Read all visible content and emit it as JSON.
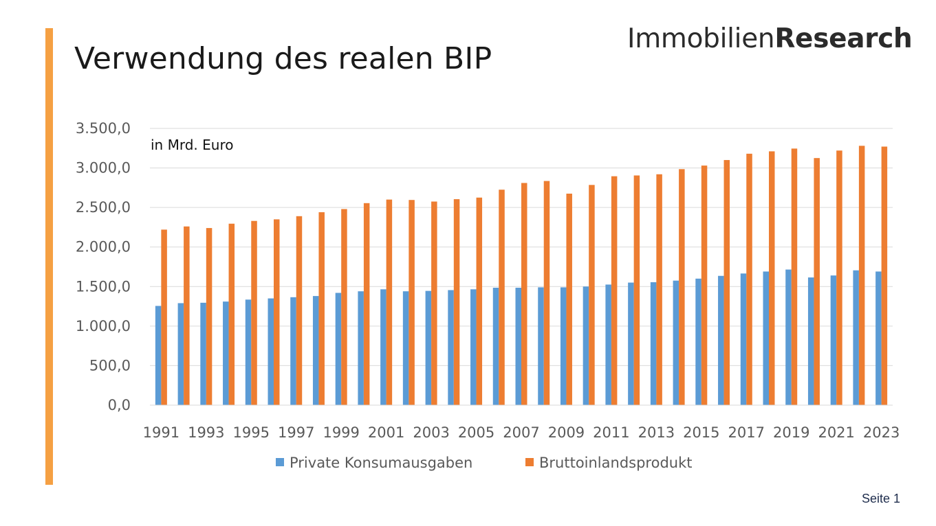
{
  "slide": {
    "title": "Verwendung des realen BIP",
    "logo_light": "Immobilien",
    "logo_bold": "Research",
    "page_number": "Seite 1",
    "accent_color": "#f5a043"
  },
  "chart_data": {
    "type": "bar",
    "annotation": "in Mrd. Euro",
    "categories": [
      "1991",
      "1992",
      "1993",
      "1994",
      "1995",
      "1996",
      "1997",
      "1998",
      "1999",
      "2000",
      "2001",
      "2002",
      "2003",
      "2004",
      "2005",
      "2006",
      "2007",
      "2008",
      "2009",
      "2010",
      "2011",
      "2012",
      "2013",
      "2014",
      "2015",
      "2016",
      "2017",
      "2018",
      "2019",
      "2020",
      "2021",
      "2022",
      "2023"
    ],
    "x_tick_labels": [
      "1991",
      "1993",
      "1995",
      "1997",
      "1999",
      "2001",
      "2003",
      "2005",
      "2007",
      "2009",
      "2011",
      "2013",
      "2015",
      "2017",
      "2019",
      "2021",
      "2023"
    ],
    "y_tick_labels": [
      "0,0",
      "500,0",
      "1.000,0",
      "1.500,0",
      "2.000,0",
      "2.500,0",
      "3.000,0",
      "3.500,0"
    ],
    "ylim": [
      0,
      3500
    ],
    "y_tick_step": 500,
    "grid": true,
    "legend_position": "bottom",
    "series": [
      {
        "name": "Private Konsumausgaben",
        "color": "#5b9bd5",
        "values": [
          1255,
          1290,
          1295,
          1310,
          1335,
          1350,
          1365,
          1380,
          1420,
          1440,
          1465,
          1440,
          1445,
          1455,
          1465,
          1485,
          1485,
          1490,
          1490,
          1500,
          1525,
          1550,
          1555,
          1575,
          1600,
          1635,
          1665,
          1690,
          1715,
          1615,
          1640,
          1705,
          1690
        ]
      },
      {
        "name": "Bruttoinlandsprodukt",
        "color": "#ed7d31",
        "values": [
          2220,
          2260,
          2240,
          2295,
          2330,
          2350,
          2390,
          2440,
          2480,
          2555,
          2600,
          2595,
          2575,
          2605,
          2625,
          2725,
          2810,
          2835,
          2675,
          2785,
          2895,
          2905,
          2920,
          2985,
          3030,
          3100,
          3180,
          3210,
          3245,
          3125,
          3220,
          3280,
          3270
        ]
      }
    ]
  }
}
